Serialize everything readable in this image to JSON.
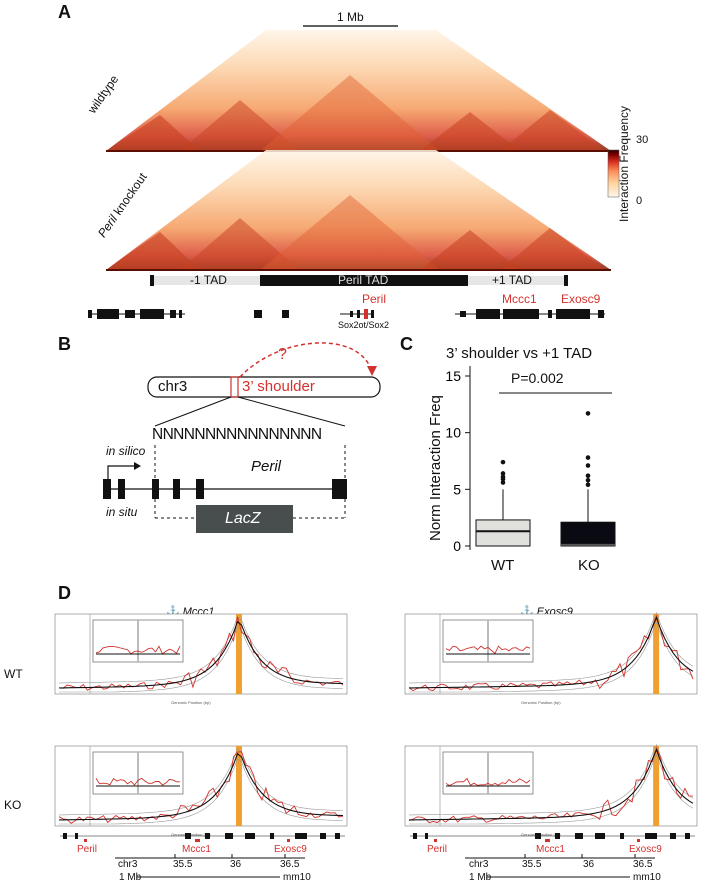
{
  "panels": {
    "a": {
      "letter": "A",
      "scale_label": "1 Mb",
      "row_labels": [
        "wildtype",
        "Peril knockout"
      ],
      "row_label_italic_word": "Peril",
      "row_label_rest": " knockout",
      "colorbar": {
        "title": "Interaction Frequency",
        "max": "30",
        "min": "0",
        "colors": [
          "#fff7ec",
          "#fdd49e",
          "#fc8d59",
          "#d7301f",
          "#7f0000",
          "#2b0000"
        ]
      },
      "tads": {
        "left": "-1 TAD",
        "center": "Peril TAD",
        "right": "+1 TAD"
      },
      "genes": {
        "peril": "Peril",
        "mccc1": "Mccc1",
        "exosc9": "Exosc9",
        "sox2": "Sox2ot/Sox2"
      }
    },
    "b": {
      "letter": "B",
      "chrom": "chr3",
      "shoulder": "3’ shoulder",
      "question": "?",
      "n_string": "NNNNNNNNNNNNNNNN",
      "in_silico": "in silico",
      "in_situ": "in situ",
      "gene": "Peril",
      "lacz": "LacZ"
    },
    "c": {
      "letter": "C",
      "chart_data": {
        "type": "box",
        "title": "3’ shoulder vs +1 TAD",
        "ylabel": "Norm Interaction Freq",
        "ylim": [
          0,
          15
        ],
        "yticks": [
          0,
          5,
          10,
          15
        ],
        "categories": [
          "WT",
          "KO"
        ],
        "pvalue": "P=0.002",
        "boxes": [
          {
            "name": "WT",
            "q1": 0.0,
            "median": 1.3,
            "q3": 2.3,
            "whisker_low": 0,
            "whisker_high": 5.0,
            "outliers": [
              5.6,
              5.9,
              6.1,
              6.4,
              7.4
            ],
            "color": "#e0e0dc"
          },
          {
            "name": "KO",
            "q1": 0.0,
            "median": 0.1,
            "q3": 2.1,
            "whisker_low": 0,
            "whisker_high": 5.0,
            "outliers": [
              5.4,
              5.8,
              6.2,
              7.1,
              7.8,
              11.7
            ],
            "color": "#0a0a12"
          }
        ]
      }
    },
    "d": {
      "letter": "D",
      "anchor_symbol": "⚓",
      "columns": [
        "Mccc1",
        "Exosc9"
      ],
      "rows": [
        "WT",
        "KO"
      ],
      "genes": {
        "peril": "Peril",
        "mccc1": "Mccc1",
        "exosc9": "Exosc9"
      },
      "axis": {
        "chrom": "chr3",
        "ticks": [
          "35.5",
          "36",
          "36.5"
        ],
        "scale": "1 Mb",
        "build": "mm10"
      },
      "tiny_xlabel": "Genomic Position (bp)",
      "tiny_ylabel": "C counts"
    }
  }
}
